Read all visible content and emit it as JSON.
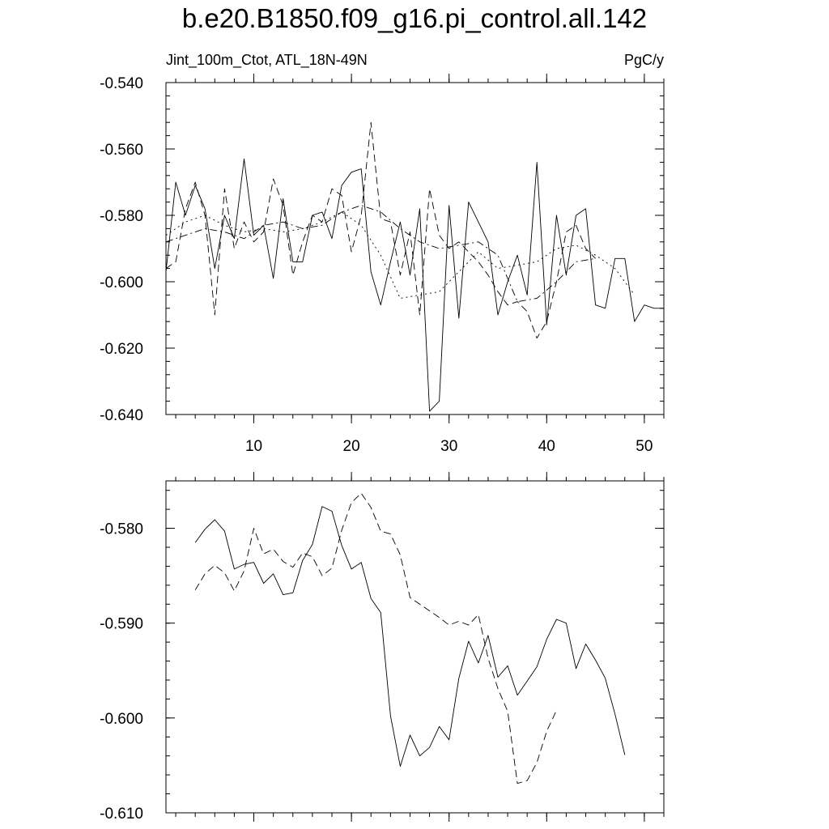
{
  "title": "b.e20.B1850.f09_g16.pi_control.all.142",
  "subtitle_left": "Jint_100m_Ctot, ATL_18N-49N",
  "subtitle_right": "PgC/y",
  "chart_data": [
    {
      "type": "line",
      "title": "b.e20.B1850.f09_g16.pi_control.all.142",
      "xlabel": "",
      "ylabel": "",
      "xlim": [
        1,
        52
      ],
      "ylim": [
        -0.64,
        -0.54
      ],
      "x_ticks": [
        10,
        20,
        30,
        40,
        50
      ],
      "x_tick_labels": [
        "10",
        "20",
        "30",
        "40",
        "50"
      ],
      "y_ticks": [
        -0.64,
        -0.62,
        -0.6,
        -0.58,
        -0.56,
        -0.54
      ],
      "y_tick_labels": [
        "-0.640",
        "-0.620",
        "-0.600",
        "-0.580",
        "-0.560",
        "-0.540"
      ],
      "grid": false,
      "series": [
        {
          "style": "solid",
          "x": [
            1,
            2,
            3,
            4,
            5,
            6,
            7,
            8,
            9,
            10,
            11,
            12,
            13,
            14,
            15,
            16,
            17,
            18,
            19,
            20,
            21,
            22,
            23,
            24,
            25,
            26,
            27,
            28,
            29,
            30,
            31,
            32,
            33,
            34,
            35,
            36,
            37,
            38,
            39,
            40,
            41,
            42,
            43,
            44,
            45,
            46,
            47,
            48,
            49,
            50,
            51,
            52
          ],
          "y": [
            -0.597,
            -0.57,
            -0.58,
            -0.571,
            -0.578,
            -0.596,
            -0.58,
            -0.587,
            -0.563,
            -0.586,
            -0.583,
            -0.599,
            -0.575,
            -0.594,
            -0.594,
            -0.58,
            -0.579,
            -0.587,
            -0.571,
            -0.567,
            -0.566,
            -0.597,
            -0.607,
            -0.594,
            -0.582,
            -0.598,
            -0.578,
            -0.639,
            -0.636,
            -0.577,
            -0.611,
            -0.576,
            -0.582,
            -0.588,
            -0.61,
            -0.6,
            -0.592,
            -0.604,
            -0.564,
            -0.613,
            -0.58,
            -0.598,
            -0.58,
            -0.578,
            -0.607,
            -0.608,
            -0.593,
            -0.593,
            -0.612,
            -0.607,
            -0.608,
            -0.608
          ]
        },
        {
          "style": "dashed",
          "x": [
            1,
            2,
            3,
            4,
            5,
            6,
            7,
            8,
            9,
            10,
            11,
            12,
            13,
            14,
            15,
            16,
            17,
            18,
            19,
            20,
            21,
            22,
            23,
            24,
            25,
            26,
            27,
            28,
            29,
            30,
            31,
            32,
            33,
            34,
            35,
            36,
            37,
            38,
            39,
            40,
            41,
            42,
            43,
            44,
            45
          ],
          "y": [
            -0.596,
            -0.594,
            -0.578,
            -0.57,
            -0.58,
            -0.61,
            -0.572,
            -0.59,
            -0.582,
            -0.588,
            -0.585,
            -0.569,
            -0.577,
            -0.598,
            -0.588,
            -0.58,
            -0.582,
            -0.572,
            -0.574,
            -0.591,
            -0.58,
            -0.552,
            -0.581,
            -0.582,
            -0.598,
            -0.585,
            -0.61,
            -0.572,
            -0.586,
            -0.59,
            -0.588,
            -0.591,
            -0.594,
            -0.598,
            -0.603,
            -0.607,
            -0.606,
            -0.609,
            -0.617,
            -0.612,
            -0.6,
            -0.585,
            -0.583,
            -0.59,
            -0.593
          ]
        },
        {
          "style": "dotted",
          "x": [
            1,
            3,
            5,
            7,
            9,
            11,
            13,
            15,
            17,
            19,
            21,
            23,
            25,
            27,
            29,
            31,
            33,
            35,
            37,
            39,
            41,
            43,
            45,
            47,
            49
          ],
          "y": [
            -0.586,
            -0.582,
            -0.58,
            -0.583,
            -0.585,
            -0.584,
            -0.585,
            -0.584,
            -0.582,
            -0.579,
            -0.583,
            -0.592,
            -0.605,
            -0.604,
            -0.603,
            -0.597,
            -0.591,
            -0.596,
            -0.595,
            -0.594,
            -0.59,
            -0.589,
            -0.592,
            -0.596,
            -0.604
          ]
        },
        {
          "style": "dash-dot",
          "x": [
            1,
            3,
            5,
            7,
            9,
            11,
            13,
            15,
            17,
            19,
            21,
            23,
            25,
            27,
            29,
            31,
            33,
            35,
            37,
            39,
            41,
            43,
            45
          ],
          "y": [
            -0.588,
            -0.586,
            -0.584,
            -0.585,
            -0.587,
            -0.583,
            -0.582,
            -0.584,
            -0.583,
            -0.579,
            -0.577,
            -0.579,
            -0.584,
            -0.588,
            -0.59,
            -0.589,
            -0.588,
            -0.592,
            -0.606,
            -0.605,
            -0.6,
            -0.594,
            -0.593
          ]
        }
      ]
    },
    {
      "type": "line",
      "xlabel": "",
      "ylabel": "",
      "xlim": [
        1,
        52
      ],
      "ylim": [
        -0.61,
        -0.575
      ],
      "x_ticks": [
        10,
        20,
        30,
        40,
        50
      ],
      "x_tick_labels": [],
      "y_ticks": [
        -0.61,
        -0.6,
        -0.59,
        -0.58
      ],
      "y_tick_labels": [
        "-0.610",
        "-0.600",
        "-0.590",
        "-0.580"
      ],
      "grid": false,
      "series": [
        {
          "style": "solid",
          "x": [
            4,
            5,
            6,
            7,
            8,
            9,
            10,
            11,
            12,
            13,
            14,
            15,
            16,
            17,
            18,
            19,
            20,
            21,
            22,
            23,
            24,
            25,
            26,
            27,
            28,
            29,
            30,
            31,
            32,
            33,
            34,
            35,
            36,
            37,
            38,
            39,
            40,
            41,
            42,
            43,
            44,
            45,
            46,
            47,
            48
          ],
          "y": [
            -0.5815,
            -0.5801,
            -0.5791,
            -0.5803,
            -0.5843,
            -0.5838,
            -0.5836,
            -0.5858,
            -0.5848,
            -0.587,
            -0.5868,
            -0.5834,
            -0.5817,
            -0.5777,
            -0.5782,
            -0.5818,
            -0.5843,
            -0.5836,
            -0.5874,
            -0.5889,
            -0.5998,
            -0.6051,
            -0.6018,
            -0.604,
            -0.6031,
            -0.6009,
            -0.6023,
            -0.5958,
            -0.5919,
            -0.5942,
            -0.5913,
            -0.5957,
            -0.5945,
            -0.5976,
            -0.5961,
            -0.5946,
            -0.5917,
            -0.5896,
            -0.59,
            -0.5948,
            -0.5922,
            -0.5939,
            -0.5958,
            -0.5996,
            -0.6039
          ]
        },
        {
          "style": "dashed",
          "x": [
            4,
            5,
            6,
            7,
            8,
            9,
            10,
            11,
            12,
            13,
            14,
            15,
            16,
            17,
            18,
            19,
            20,
            21,
            22,
            23,
            24,
            25,
            26,
            27,
            28,
            29,
            30,
            31,
            32,
            33,
            34,
            35,
            36,
            37,
            38,
            39,
            40,
            41
          ],
          "y": [
            -0.5865,
            -0.5848,
            -0.5839,
            -0.5847,
            -0.5866,
            -0.5845,
            -0.58,
            -0.5827,
            -0.5822,
            -0.5835,
            -0.5841,
            -0.5826,
            -0.583,
            -0.585,
            -0.5842,
            -0.5802,
            -0.5773,
            -0.5763,
            -0.5778,
            -0.5803,
            -0.5806,
            -0.5828,
            -0.5873,
            -0.588,
            -0.5887,
            -0.5894,
            -0.5902,
            -0.5898,
            -0.5902,
            -0.5891,
            -0.5937,
            -0.5969,
            -0.5993,
            -0.6069,
            -0.6066,
            -0.6047,
            -0.6014,
            -0.5992
          ]
        }
      ]
    }
  ]
}
